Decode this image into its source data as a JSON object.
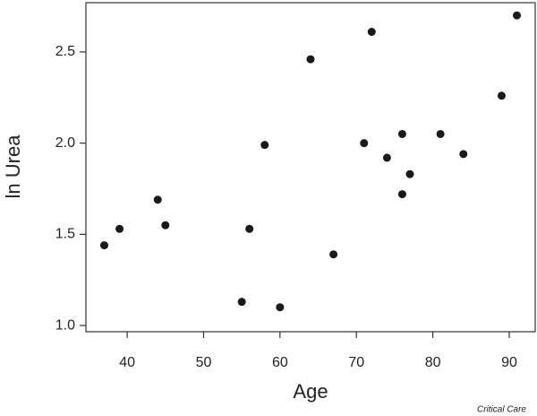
{
  "chart_data": {
    "type": "scatter",
    "x_label": "Age",
    "y_label": "ln Urea",
    "source": "Critical Care",
    "series": [
      {
        "color": "#1a1a1a",
        "x": [
          37,
          39,
          44,
          45,
          55,
          56,
          58,
          60,
          64,
          67,
          71,
          72,
          74,
          76,
          76,
          77,
          81,
          84,
          89,
          91
        ],
        "values": [
          1.44,
          1.53,
          1.69,
          1.55,
          1.13,
          1.53,
          1.99,
          1.1,
          2.46,
          1.39,
          2.0,
          2.61,
          1.92,
          2.05,
          1.72,
          1.83,
          2.05,
          1.94,
          2.26,
          2.7
        ]
      }
    ],
    "xlim": [
      34.6,
      93.4
    ],
    "xticks": [
      40,
      50,
      60,
      70,
      80,
      90
    ],
    "ylim": [
      0.966,
      2.77
    ],
    "yticks": [
      {
        "value": 1,
        "label": "1.0"
      },
      1.5,
      {
        "value": 2,
        "label": "2.0"
      },
      2.5
    ]
  }
}
